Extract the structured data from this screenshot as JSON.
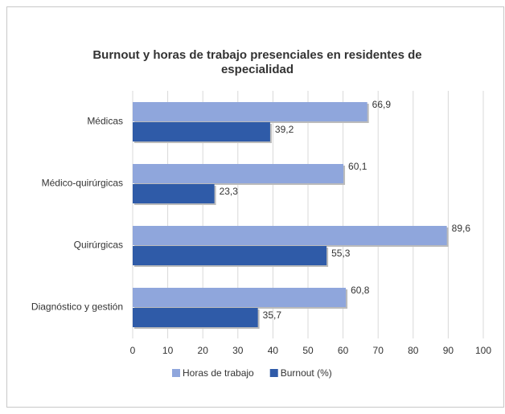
{
  "chart_data": {
    "type": "bar",
    "orientation": "horizontal",
    "title": "Burnout y horas de trabajo presenciales en residentes de especialidad",
    "categories": [
      "Médicas",
      "Médico-quirúrgicas",
      "Quirúrgicas",
      "Diagnóstico y gestión"
    ],
    "series": [
      {
        "name": "Horas de trabajo",
        "color": "#8fa6dc",
        "values": [
          66.9,
          60.1,
          89.6,
          60.8
        ],
        "value_labels": [
          "66,9",
          "60,1",
          "89,6",
          "60,8"
        ]
      },
      {
        "name": "Burnout (%)",
        "color": "#2f5ba8",
        "values": [
          39.2,
          23.3,
          55.3,
          35.7
        ],
        "value_labels": [
          "39,2",
          "23,3",
          "55,3",
          "35,7"
        ]
      }
    ],
    "xlim": [
      0,
      100
    ],
    "xticks": [
      0,
      10,
      20,
      30,
      40,
      50,
      60,
      70,
      80,
      90,
      100
    ],
    "grid": true,
    "legend": "bottom"
  }
}
